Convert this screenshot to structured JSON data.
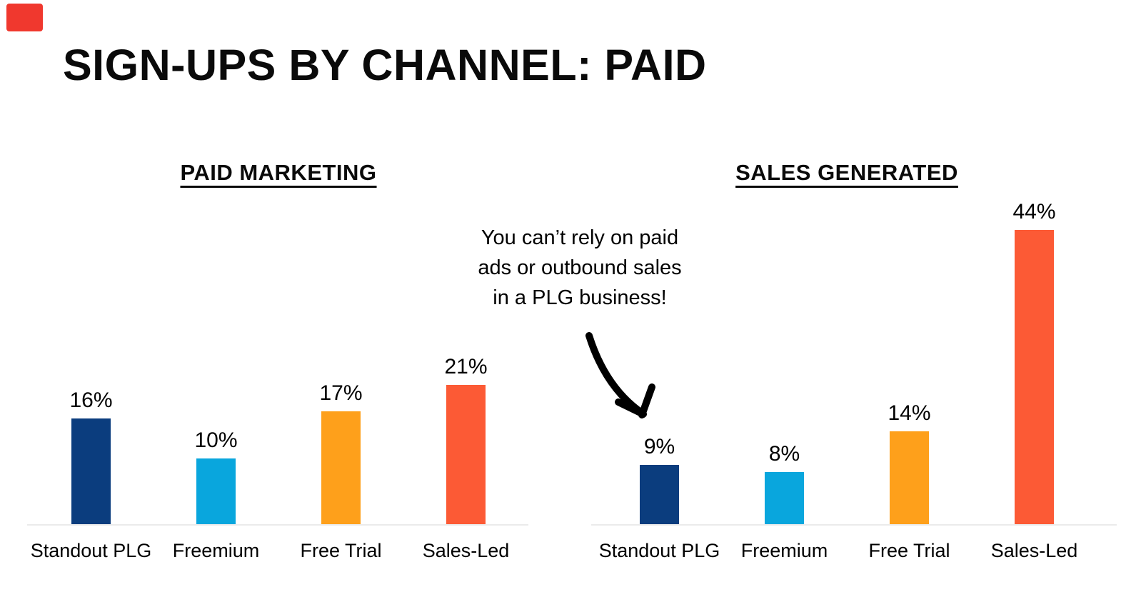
{
  "page": {
    "background": "#ffffff"
  },
  "brand": {
    "mark": "red-rectangle-badge",
    "color": "#f0382e"
  },
  "header": {
    "title": "SIGN-UPS BY CHANNEL: PAID"
  },
  "annotation": {
    "text": "You can’t rely on paid\nads or outbound sales\nin a PLG business!",
    "arrow_points_to": "Standout PLG 9% bar"
  },
  "theme": {
    "baseline_color": "#ebebeb",
    "text_color": "#000000",
    "bar_palette": {
      "standout_plg": "#0b3d7e",
      "freemium": "#09a6dd",
      "free_trial": "#fea01b",
      "sales_led": "#fc5a35"
    }
  },
  "chart_data": [
    {
      "type": "bar",
      "title": "PAID MARKETING",
      "categories": [
        "Standout PLG",
        "Freemium",
        "Free Trial",
        "Sales-Led"
      ],
      "values": [
        16,
        10,
        17,
        21
      ],
      "value_labels": [
        "16%",
        "10%",
        "17%",
        "21%"
      ],
      "bar_colors": [
        "#0b3d7e",
        "#09a6dd",
        "#fea01b",
        "#fc5a35"
      ],
      "unit": "%",
      "ylim": [
        0,
        48
      ],
      "grid": false,
      "legend": "none",
      "value_label_position": "above-bar",
      "xlabel": "",
      "ylabel": ""
    },
    {
      "type": "bar",
      "title": "SALES GENERATED",
      "categories": [
        "Standout PLG",
        "Freemium",
        "Free Trial",
        "Sales-Led"
      ],
      "values": [
        9,
        8,
        14,
        44
      ],
      "value_labels": [
        "9%",
        "8%",
        "14%",
        "44%"
      ],
      "bar_colors": [
        "#0b3d7e",
        "#09a6dd",
        "#fea01b",
        "#fc5a35"
      ],
      "unit": "%",
      "ylim": [
        0,
        48
      ],
      "grid": false,
      "legend": "none",
      "value_label_position": "above-bar",
      "xlabel": "",
      "ylabel": ""
    }
  ]
}
